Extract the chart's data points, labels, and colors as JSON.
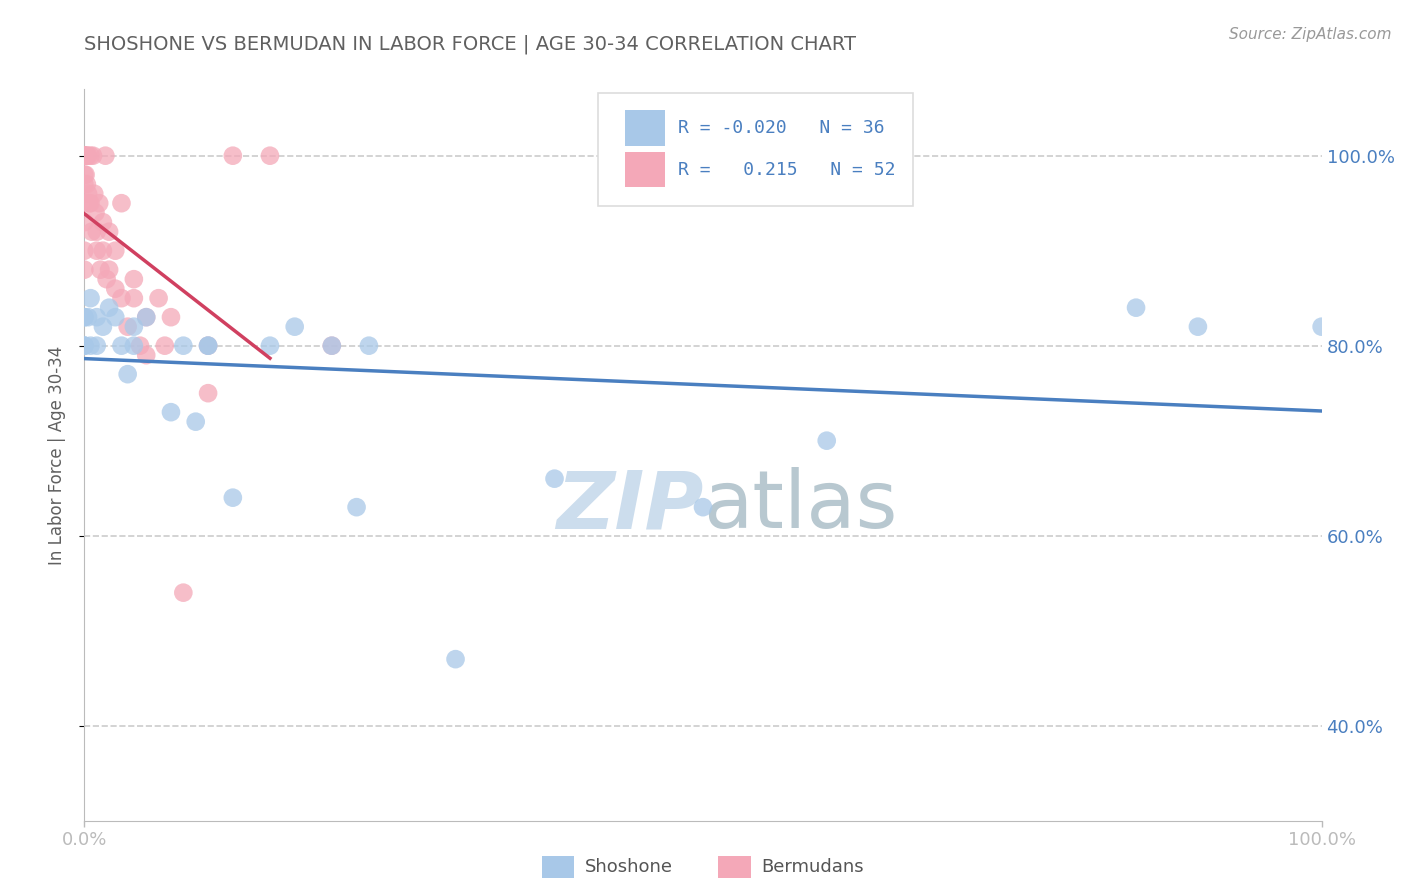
{
  "title": "SHOSHONE VS BERMUDAN IN LABOR FORCE | AGE 30-34 CORRELATION CHART",
  "source_text": "Source: ZipAtlas.com",
  "ylabel": "In Labor Force | Age 30-34",
  "xlim": [
    0.0,
    1.0
  ],
  "ylim": [
    0.3,
    1.07
  ],
  "yticks": [
    0.4,
    0.6,
    0.8,
    1.0
  ],
  "ytick_labels": [
    "40.0%",
    "60.0%",
    "80.0%",
    "100.0%"
  ],
  "xtick_labels": [
    "0.0%",
    "100.0%"
  ],
  "shoshone_r": "-0.020",
  "shoshone_n": "36",
  "bermudan_r": "0.215",
  "bermudan_n": "52",
  "shoshone_color": "#a8c8e8",
  "bermudan_color": "#f4a8b8",
  "shoshone_line_color": "#4a7fc0",
  "bermudan_line_color": "#d04060",
  "title_color": "#606060",
  "axis_color": "#bbbbbb",
  "grid_color": "#cccccc",
  "watermark_color": "#ccdded",
  "shoshone_x": [
    0.0,
    0.0,
    0.0,
    0.0,
    0.0,
    0.003,
    0.005,
    0.005,
    0.01,
    0.01,
    0.015,
    0.02,
    0.025,
    0.03,
    0.035,
    0.04,
    0.04,
    0.05,
    0.07,
    0.08,
    0.09,
    0.1,
    0.1,
    0.12,
    0.15,
    0.17,
    0.2,
    0.22,
    0.23,
    0.3,
    0.38,
    0.5,
    0.6,
    0.85,
    0.9,
    1.0
  ],
  "shoshone_y": [
    0.83,
    0.83,
    0.8,
    0.8,
    0.8,
    0.83,
    0.85,
    0.8,
    0.83,
    0.8,
    0.82,
    0.84,
    0.83,
    0.8,
    0.77,
    0.82,
    0.8,
    0.83,
    0.73,
    0.8,
    0.72,
    0.8,
    0.8,
    0.64,
    0.8,
    0.82,
    0.8,
    0.63,
    0.8,
    0.47,
    0.66,
    0.63,
    0.7,
    0.84,
    0.82,
    0.82
  ],
  "bermudan_x": [
    0.0,
    0.0,
    0.0,
    0.0,
    0.0,
    0.0,
    0.0,
    0.0,
    0.0,
    0.0,
    0.001,
    0.001,
    0.002,
    0.002,
    0.003,
    0.003,
    0.004,
    0.005,
    0.005,
    0.006,
    0.007,
    0.008,
    0.009,
    0.01,
    0.01,
    0.012,
    0.013,
    0.015,
    0.015,
    0.017,
    0.018,
    0.02,
    0.02,
    0.025,
    0.025,
    0.03,
    0.03,
    0.035,
    0.04,
    0.04,
    0.045,
    0.05,
    0.05,
    0.06,
    0.065,
    0.07,
    0.08,
    0.1,
    0.1,
    0.12,
    0.15,
    0.2
  ],
  "bermudan_y": [
    1.0,
    1.0,
    1.0,
    1.0,
    0.98,
    0.97,
    0.95,
    0.93,
    0.9,
    0.88,
    1.0,
    0.98,
    1.0,
    0.97,
    1.0,
    0.96,
    0.95,
    1.0,
    0.95,
    0.92,
    1.0,
    0.96,
    0.94,
    0.92,
    0.9,
    0.95,
    0.88,
    0.93,
    0.9,
    1.0,
    0.87,
    0.92,
    0.88,
    0.9,
    0.86,
    0.85,
    0.95,
    0.82,
    0.87,
    0.85,
    0.8,
    0.83,
    0.79,
    0.85,
    0.8,
    0.83,
    0.54,
    0.8,
    0.75,
    1.0,
    1.0,
    0.8
  ]
}
